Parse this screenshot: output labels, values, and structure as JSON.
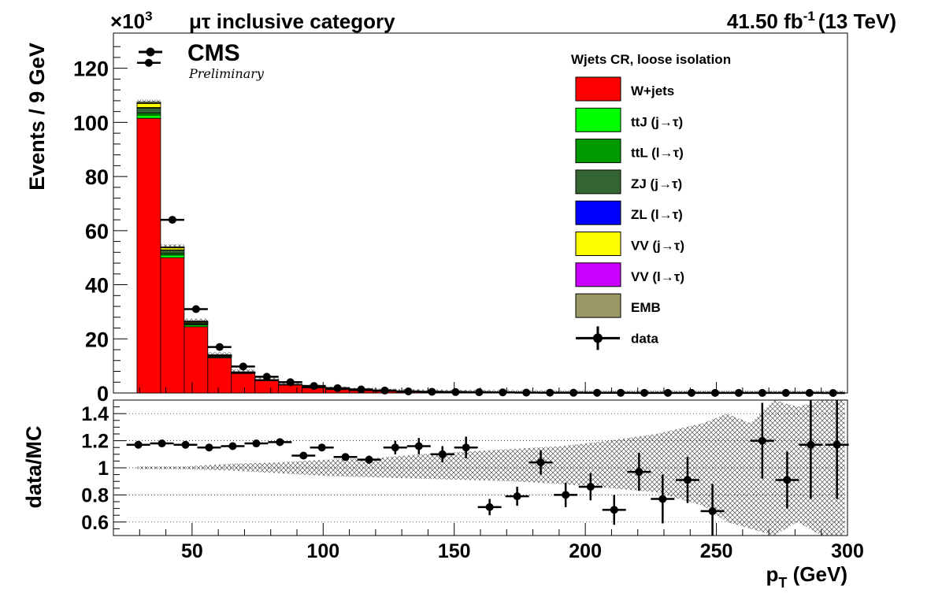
{
  "header": {
    "exp_prefix": "×10",
    "exp_sup": "3",
    "category": "μτ inclusive category",
    "lumi": "41.50 fb",
    "lumi_sup": "-1",
    "energy": "(13 TeV)"
  },
  "cms": {
    "label": "CMS",
    "sub": "Preliminary"
  },
  "legend": {
    "title": "Wjets CR, loose isolation",
    "items": [
      {
        "label": "W+jets",
        "color": "#ff0000"
      },
      {
        "label": "ttJ (j→τ)",
        "color": "#00ff00"
      },
      {
        "label": "ttL (l→τ)",
        "color": "#009900"
      },
      {
        "label": "ZJ (j→τ)",
        "color": "#336633"
      },
      {
        "label": "ZL (l→τ)",
        "color": "#0000ff"
      },
      {
        "label": "VV (j→τ)",
        "color": "#ffff00"
      },
      {
        "label": "VV (l→τ)",
        "color": "#cc00ff"
      },
      {
        "label": "EMB",
        "color": "#999966"
      },
      {
        "label": "data",
        "color": "#000000"
      }
    ]
  },
  "chart_data": [
    {
      "type": "bar",
      "stacked": true,
      "ylabel": "Events / 9 GeV",
      "xlim": [
        20,
        300
      ],
      "ylim": [
        0,
        133
      ],
      "y_ticks": [
        0,
        20,
        40,
        60,
        80,
        100,
        120
      ],
      "bin_edges": [
        29,
        38,
        47,
        56,
        65,
        74,
        83,
        92,
        101,
        110,
        119,
        128,
        137,
        146,
        155,
        164,
        173,
        182,
        191,
        200,
        209,
        218,
        227,
        236,
        245,
        254,
        263,
        272,
        281,
        290,
        299
      ],
      "series": [
        {
          "name": "W+jets",
          "values": [
            101.5,
            50,
            24.5,
            13,
            7.2,
            4.6,
            3.0,
            2.0,
            1.35,
            1.0,
            0.7,
            0.5,
            0.4,
            0.3,
            0.25,
            0.2,
            0.15,
            0.12,
            0.1,
            0.08,
            0.07,
            0.06,
            0.05,
            0.04,
            0.03,
            0.03,
            0.02,
            0.02,
            0.02,
            0.01
          ]
        },
        {
          "name": "ttJ (j→τ)",
          "values": [
            1.2,
            1.0,
            0.6,
            0.3,
            0.2,
            0.1,
            0.08,
            0.05,
            0.04,
            0.03,
            0.02,
            0.02,
            0.01,
            0.01,
            0.01,
            0.01,
            0.01,
            0,
            0,
            0,
            0,
            0,
            0,
            0,
            0,
            0,
            0,
            0,
            0,
            0
          ]
        },
        {
          "name": "ttL (l→τ)",
          "values": [
            0.8,
            0.6,
            0.3,
            0.2,
            0.1,
            0.06,
            0.04,
            0.03,
            0.02,
            0.02,
            0.01,
            0.01,
            0.01,
            0,
            0,
            0,
            0,
            0,
            0,
            0,
            0,
            0,
            0,
            0,
            0,
            0,
            0,
            0,
            0,
            0
          ]
        },
        {
          "name": "ZJ (j→τ)",
          "values": [
            1.8,
            1.2,
            0.5,
            0.3,
            0.15,
            0.1,
            0.05,
            0.04,
            0.03,
            0.02,
            0.01,
            0.01,
            0,
            0,
            0,
            0,
            0,
            0,
            0,
            0,
            0,
            0,
            0,
            0,
            0,
            0,
            0,
            0,
            0,
            0
          ]
        },
        {
          "name": "ZL (l→τ)",
          "values": [
            0.2,
            0.1,
            0.05,
            0.03,
            0.02,
            0.01,
            0,
            0,
            0,
            0,
            0,
            0,
            0,
            0,
            0,
            0,
            0,
            0,
            0,
            0,
            0,
            0,
            0,
            0,
            0,
            0,
            0,
            0,
            0,
            0
          ]
        },
        {
          "name": "VV (j→τ)",
          "values": [
            1.5,
            0.8,
            0.4,
            0.2,
            0.1,
            0.06,
            0.04,
            0.03,
            0.02,
            0.01,
            0.01,
            0.01,
            0,
            0,
            0,
            0,
            0,
            0,
            0,
            0,
            0,
            0,
            0,
            0,
            0,
            0,
            0,
            0,
            0,
            0
          ]
        },
        {
          "name": "VV (l→τ)",
          "values": [
            0.1,
            0.05,
            0.03,
            0.02,
            0.01,
            0,
            0,
            0,
            0,
            0,
            0,
            0,
            0,
            0,
            0,
            0,
            0,
            0,
            0,
            0,
            0,
            0,
            0,
            0,
            0,
            0,
            0,
            0,
            0,
            0
          ]
        },
        {
          "name": "EMB",
          "values": [
            0.4,
            0.3,
            0.2,
            0.1,
            0.05,
            0.03,
            0.02,
            0.01,
            0,
            0,
            0,
            0,
            0,
            0,
            0,
            0,
            0,
            0,
            0,
            0,
            0,
            0,
            0,
            0,
            0,
            0,
            0,
            0,
            0,
            0
          ]
        }
      ],
      "data": {
        "name": "data",
        "x": [
          33.5,
          42.5,
          51.5,
          60.5,
          69.5,
          78.5,
          87.5,
          96.5,
          105.5,
          114.5,
          123.5,
          132.5,
          141.5,
          150.5,
          159.5,
          168.5,
          177.5,
          186.5,
          195.5,
          204.5,
          213.5,
          222.5,
          231.5,
          240.5,
          249.5,
          258.5,
          267.5,
          276.5,
          285.5,
          294.5
        ],
        "y": [
          122,
          64,
          31,
          17,
          9.8,
          6.0,
          4.0,
          2.6,
          1.8,
          1.3,
          0.9,
          0.6,
          0.45,
          0.35,
          0.28,
          0.22,
          0.15,
          0.12,
          0.1,
          0.08,
          0.06,
          0.05,
          0.04,
          0.03,
          0.03,
          0.02,
          0.02,
          0.02,
          0.02,
          0.01
        ]
      }
    },
    {
      "type": "scatter",
      "ylabel": "data/MC",
      "xlabel": "p_T (GeV)",
      "xlim": [
        20,
        300
      ],
      "ylim": [
        0.5,
        1.5
      ],
      "x_ticks": [
        50,
        100,
        150,
        200,
        250,
        300
      ],
      "y_ticks": [
        0.6,
        0.8,
        1,
        1.2,
        1.4
      ],
      "grid_y": [
        0.6,
        0.8,
        1,
        1.2,
        1.4
      ],
      "ratio": {
        "x": [
          29.5,
          38.5,
          47.5,
          56.5,
          65.5,
          74.5,
          83.5,
          92.5,
          99.5,
          108.5,
          117.5,
          127.5,
          136.5,
          145.5,
          154.5,
          163.5,
          174,
          183,
          192.5,
          202,
          211,
          220.5,
          229.5,
          239,
          248.5,
          267.5,
          277,
          286,
          296
        ],
        "y": [
          1.17,
          1.18,
          1.17,
          1.15,
          1.16,
          1.18,
          1.19,
          1.09,
          1.15,
          1.08,
          1.06,
          1.15,
          1.16,
          1.1,
          1.15,
          0.71,
          0.79,
          1.04,
          0.8,
          0.86,
          0.69,
          0.97,
          0.77,
          0.91,
          0.68,
          1.2,
          0.91,
          1.17,
          1.17
        ],
        "yerr": [
          0.01,
          0.01,
          0.01,
          0.01,
          0.01,
          0.01,
          0.01,
          0.01,
          0.02,
          0.02,
          0.03,
          0.05,
          0.06,
          0.06,
          0.08,
          0.06,
          0.07,
          0.09,
          0.09,
          0.1,
          0.11,
          0.14,
          0.18,
          0.17,
          0.2,
          0.28,
          0.21,
          0.4,
          0.4
        ]
      },
      "mc_uncertainty_band": {
        "x": [
          29,
          47,
          65,
          83,
          101,
          119,
          137,
          155,
          173,
          191,
          209,
          227,
          245,
          254,
          263,
          272,
          281,
          290,
          299
        ],
        "low": [
          0.99,
          0.99,
          0.98,
          0.96,
          0.94,
          0.93,
          0.92,
          0.91,
          0.9,
          0.88,
          0.85,
          0.82,
          0.72,
          0.6,
          0.55,
          0.5,
          0.6,
          0.5,
          0.5
        ],
        "high": [
          1.01,
          1.01,
          1.03,
          1.04,
          1.06,
          1.07,
          1.1,
          1.12,
          1.14,
          1.16,
          1.2,
          1.25,
          1.33,
          1.4,
          1.33,
          1.5,
          1.45,
          1.5,
          1.5
        ]
      }
    }
  ]
}
